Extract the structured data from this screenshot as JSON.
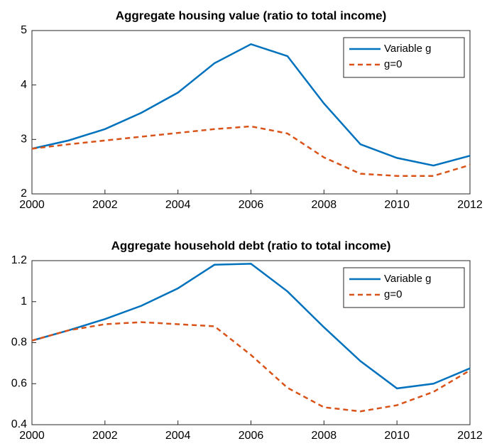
{
  "chart_data": [
    {
      "type": "line",
      "title": "Aggregate housing value (ratio to total income)",
      "x": [
        2000,
        2001,
        2002,
        2003,
        2004,
        2005,
        2006,
        2007,
        2008,
        2009,
        2010,
        2011,
        2012
      ],
      "series": [
        {
          "name": "Variable g",
          "color": "#0072bd",
          "linestyle": "solid",
          "values": [
            2.83,
            2.98,
            3.19,
            3.49,
            3.86,
            4.4,
            4.75,
            4.53,
            3.66,
            2.91,
            2.66,
            2.52,
            2.7
          ]
        },
        {
          "name": "g=0",
          "color": "#d95319",
          "linestyle": "dashed",
          "values": [
            2.83,
            2.91,
            2.98,
            3.05,
            3.12,
            3.19,
            3.24,
            3.11,
            2.67,
            2.37,
            2.33,
            2.33,
            2.53
          ]
        }
      ],
      "xlim": [
        2000,
        2012
      ],
      "xticks": [
        2000,
        2002,
        2004,
        2006,
        2008,
        2010,
        2012
      ],
      "ylim": [
        2,
        5
      ],
      "yticks": [
        2,
        3,
        4,
        5
      ],
      "grid": false,
      "legend": "northeast"
    },
    {
      "type": "line",
      "title": "Aggregate household debt (ratio to total income)",
      "x": [
        2000,
        2001,
        2002,
        2003,
        2004,
        2005,
        2006,
        2007,
        2008,
        2009,
        2010,
        2011,
        2012
      ],
      "series": [
        {
          "name": "Variable g",
          "color": "#0072bd",
          "linestyle": "solid",
          "values": [
            0.81,
            0.86,
            0.915,
            0.98,
            1.065,
            1.18,
            1.185,
            1.05,
            0.875,
            0.71,
            0.577,
            0.6,
            0.675
          ]
        },
        {
          "name": "g=0",
          "color": "#d95319",
          "linestyle": "dashed",
          "values": [
            0.81,
            0.86,
            0.89,
            0.9,
            0.89,
            0.88,
            0.74,
            0.58,
            0.485,
            0.465,
            0.495,
            0.56,
            0.665
          ]
        }
      ],
      "xlim": [
        2000,
        2012
      ],
      "xticks": [
        2000,
        2002,
        2004,
        2006,
        2008,
        2010,
        2012
      ],
      "ylim": [
        0.4,
        1.2
      ],
      "yticks": [
        0.4,
        0.6,
        0.8,
        1,
        1.2
      ],
      "grid": false,
      "legend": "northeast"
    }
  ]
}
